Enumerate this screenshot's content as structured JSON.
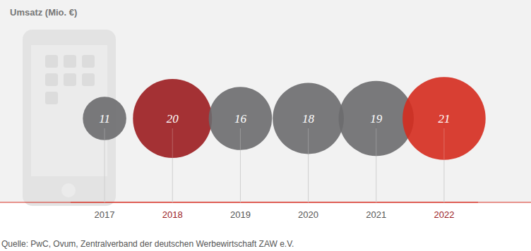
{
  "chart_data": {
    "type": "bubble",
    "title": "Umsatz (Mio. €)",
    "categories": [
      "2017",
      "2018",
      "2019",
      "2020",
      "2021",
      "2022"
    ],
    "values": [
      11,
      20,
      16,
      18,
      19,
      21
    ],
    "colors": [
      "#6b6b6e",
      "#9b1c1f",
      "#6b6b6e",
      "#6b6b6e",
      "#6b6b6e",
      "#d52b1e"
    ],
    "data_labels": true,
    "tick_labels": "x",
    "source": "Quelle: PwC, Ovum, Zentralverband der deutschen Werbewirtschaft ZAW e.V."
  }
}
